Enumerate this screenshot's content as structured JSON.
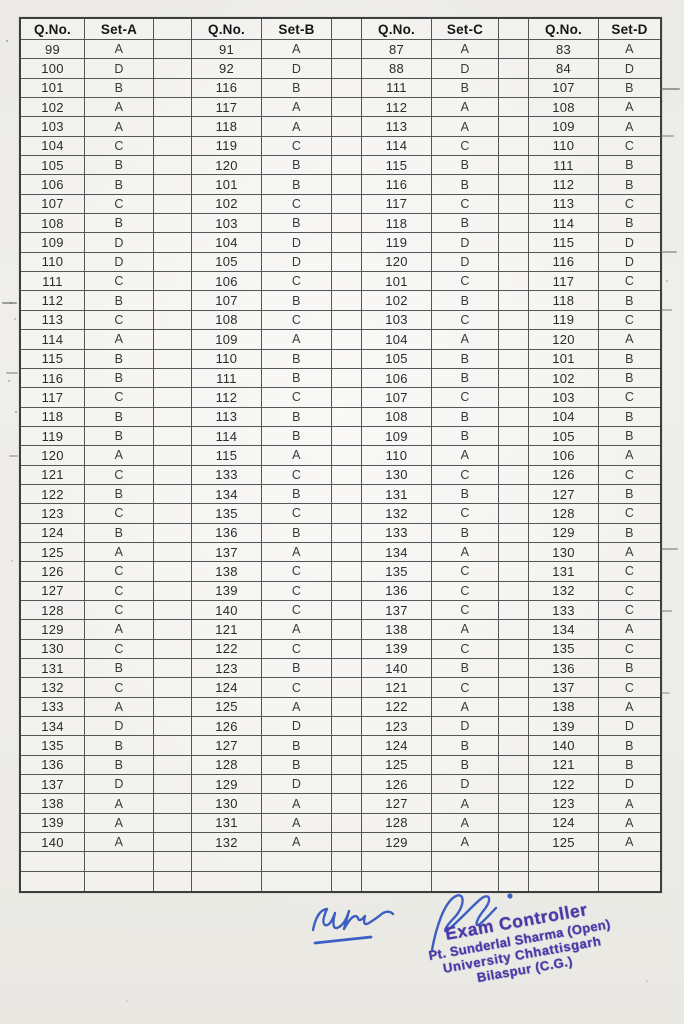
{
  "table": {
    "headers": [
      "Q.No.",
      "Set-A",
      "Q.No.",
      "Set-B",
      "Q.No.",
      "Set-C",
      "Q.No.",
      "Set-D"
    ],
    "rows": [
      [
        "99",
        "A",
        "91",
        "A",
        "87",
        "A",
        "83",
        "A"
      ],
      [
        "100",
        "D",
        "92",
        "D",
        "88",
        "D",
        "84",
        "D"
      ],
      [
        "101",
        "B",
        "116",
        "B",
        "111",
        "B",
        "107",
        "B"
      ],
      [
        "102",
        "A",
        "117",
        "A",
        "112",
        "A",
        "108",
        "A"
      ],
      [
        "103",
        "A",
        "118",
        "A",
        "113",
        "A",
        "109",
        "A"
      ],
      [
        "104",
        "C",
        "119",
        "C",
        "114",
        "C",
        "110",
        "C"
      ],
      [
        "105",
        "B",
        "120",
        "B",
        "115",
        "B",
        "111",
        "B"
      ],
      [
        "106",
        "B",
        "101",
        "B",
        "116",
        "B",
        "112",
        "B"
      ],
      [
        "107",
        "C",
        "102",
        "C",
        "117",
        "C",
        "113",
        "C"
      ],
      [
        "108",
        "B",
        "103",
        "B",
        "118",
        "B",
        "114",
        "B"
      ],
      [
        "109",
        "D",
        "104",
        "D",
        "119",
        "D",
        "115",
        "D"
      ],
      [
        "110",
        "D",
        "105",
        "D",
        "120",
        "D",
        "116",
        "D"
      ],
      [
        "111",
        "C",
        "106",
        "C",
        "101",
        "C",
        "117",
        "C"
      ],
      [
        "112",
        "B",
        "107",
        "B",
        "102",
        "B",
        "118",
        "B"
      ],
      [
        "113",
        "C",
        "108",
        "C",
        "103",
        "C",
        "119",
        "C"
      ],
      [
        "114",
        "A",
        "109",
        "A",
        "104",
        "A",
        "120",
        "A"
      ],
      [
        "115",
        "B",
        "110",
        "B",
        "105",
        "B",
        "101",
        "B"
      ],
      [
        "116",
        "B",
        "111",
        "B",
        "106",
        "B",
        "102",
        "B"
      ],
      [
        "117",
        "C",
        "112",
        "C",
        "107",
        "C",
        "103",
        "C"
      ],
      [
        "118",
        "B",
        "113",
        "B",
        "108",
        "B",
        "104",
        "B"
      ],
      [
        "119",
        "B",
        "114",
        "B",
        "109",
        "B",
        "105",
        "B"
      ],
      [
        "120",
        "A",
        "115",
        "A",
        "110",
        "A",
        "106",
        "A"
      ],
      [
        "121",
        "C",
        "133",
        "C",
        "130",
        "C",
        "126",
        "C"
      ],
      [
        "122",
        "B",
        "134",
        "B",
        "131",
        "B",
        "127",
        "B"
      ],
      [
        "123",
        "C",
        "135",
        "C",
        "132",
        "C",
        "128",
        "C"
      ],
      [
        "124",
        "B",
        "136",
        "B",
        "133",
        "B",
        "129",
        "B"
      ],
      [
        "125",
        "A",
        "137",
        "A",
        "134",
        "A",
        "130",
        "A"
      ],
      [
        "126",
        "C",
        "138",
        "C",
        "135",
        "C",
        "131",
        "C"
      ],
      [
        "127",
        "C",
        "139",
        "C",
        "136",
        "C",
        "132",
        "C"
      ],
      [
        "128",
        "C",
        "140",
        "C",
        "137",
        "C",
        "133",
        "C"
      ],
      [
        "129",
        "A",
        "121",
        "A",
        "138",
        "A",
        "134",
        "A"
      ],
      [
        "130",
        "C",
        "122",
        "C",
        "139",
        "C",
        "135",
        "C"
      ],
      [
        "131",
        "B",
        "123",
        "B",
        "140",
        "B",
        "136",
        "B"
      ],
      [
        "132",
        "C",
        "124",
        "C",
        "121",
        "C",
        "137",
        "C"
      ],
      [
        "133",
        "A",
        "125",
        "A",
        "122",
        "A",
        "138",
        "A"
      ],
      [
        "134",
        "D",
        "126",
        "D",
        "123",
        "D",
        "139",
        "D"
      ],
      [
        "135",
        "B",
        "127",
        "B",
        "124",
        "B",
        "140",
        "B"
      ],
      [
        "136",
        "B",
        "128",
        "B",
        "125",
        "B",
        "121",
        "B"
      ],
      [
        "137",
        "D",
        "129",
        "D",
        "126",
        "D",
        "122",
        "D"
      ],
      [
        "138",
        "A",
        "130",
        "A",
        "127",
        "A",
        "123",
        "A"
      ],
      [
        "139",
        "A",
        "131",
        "A",
        "128",
        "A",
        "124",
        "A"
      ],
      [
        "140",
        "A",
        "132",
        "A",
        "129",
        "A",
        "125",
        "A"
      ],
      [
        "",
        "",
        "",
        "",
        "",
        "",
        "",
        ""
      ],
      [
        "",
        "",
        "",
        "",
        "",
        "",
        "",
        ""
      ]
    ]
  },
  "stamp": {
    "line1": "Exam Controller",
    "line2": "Pt. Sunderlal Sharma (Open)",
    "line3": "University Chhattisgarh",
    "line4": "Bilaspur (C.G.)"
  },
  "colors": {
    "stamp_ink": "#4a3aa8",
    "signature_ink": "#3d5fc2",
    "paper": "#edece8",
    "table_line": "#565656"
  }
}
